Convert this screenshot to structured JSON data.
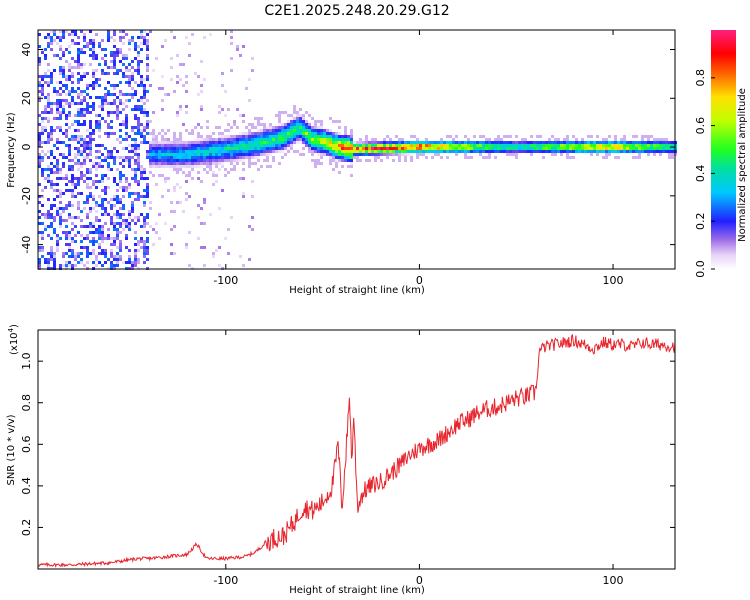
{
  "title": "C2E1.2025.248.20.29.G12",
  "chart_data": [
    {
      "type": "heatmap",
      "xlabel": "Height of straight line (km)",
      "ylabel": "Frequency (Hz)",
      "xlim": [
        -197,
        132
      ],
      "ylim": [
        -50,
        48
      ],
      "x_ticks": [
        -100,
        0,
        100
      ],
      "x_tick_labels": [
        "-100",
        "0",
        "100"
      ],
      "y_ticks": [
        -40,
        -20,
        0,
        20,
        40
      ],
      "y_tick_labels": [
        "-40",
        "-20",
        "0",
        "20",
        "40"
      ],
      "colorbar": {
        "label": "Normalized spectral amplitude",
        "range": [
          0,
          1
        ],
        "ticks": [
          0,
          0.2,
          0.4,
          0.6,
          0.8
        ],
        "tick_labels": [
          "0.0",
          "0.2",
          "0.4",
          "0.6",
          "0.8"
        ],
        "colormap": "rainbow (white-purple-blue-cyan-green-yellow-red-pink)"
      },
      "ridge": {
        "x": [
          -140,
          -120,
          -100,
          -85,
          -70,
          -62,
          -55,
          -48,
          -42,
          -35,
          0,
          50,
          100,
          132
        ],
        "frequency": [
          -3,
          -3,
          -1,
          1,
          4,
          8,
          3,
          2,
          0,
          -1,
          0,
          0,
          0,
          0
        ],
        "peak_amplitude": [
          0.35,
          0.4,
          0.45,
          0.5,
          0.55,
          0.55,
          0.6,
          0.7,
          0.9,
          1.0,
          1.0,
          0.5,
          0.9,
          0.5
        ]
      }
    },
    {
      "type": "line",
      "xlabel": "Height of straight line (km)",
      "ylabel": "SNR (10 * v/v)",
      "y_multiplier_label": "(x10",
      "y_multiplier_exponent": "4",
      "xlim": [
        -197,
        132
      ],
      "ylim": [
        0,
        1.15
      ],
      "x_ticks": [
        -100,
        0,
        100
      ],
      "x_tick_labels": [
        "-100",
        "0",
        "100"
      ],
      "y_ticks": [
        0.2,
        0.4,
        0.6,
        0.8,
        1.0
      ],
      "y_tick_labels": [
        "0.2",
        "0.4",
        "0.6",
        "0.8",
        "1.0"
      ],
      "series": [
        {
          "name": "SNR",
          "color": "#e8252d",
          "x": [
            -197,
            -180,
            -160,
            -145,
            -140,
            -120,
            -115,
            -110,
            -100,
            -90,
            -85,
            -80,
            -75,
            -70,
            -65,
            -60,
            -55,
            -50,
            -45,
            -42,
            -40,
            -38,
            -36,
            -35,
            -34,
            -32,
            -30,
            -28,
            -25,
            -20,
            -15,
            -10,
            -5,
            0,
            5,
            10,
            15,
            20,
            25,
            30,
            35,
            40,
            45,
            50,
            55,
            60,
            61,
            62,
            65,
            70,
            75,
            80,
            85,
            90,
            95,
            100,
            105,
            110,
            115,
            120,
            125,
            132
          ],
          "y": [
            0.02,
            0.02,
            0.03,
            0.05,
            0.05,
            0.07,
            0.12,
            0.05,
            0.05,
            0.06,
            0.08,
            0.12,
            0.15,
            0.16,
            0.22,
            0.3,
            0.28,
            0.32,
            0.4,
            0.6,
            0.3,
            0.55,
            0.85,
            0.5,
            0.75,
            0.3,
            0.35,
            0.38,
            0.4,
            0.42,
            0.46,
            0.5,
            0.55,
            0.58,
            0.6,
            0.62,
            0.66,
            0.7,
            0.72,
            0.75,
            0.77,
            0.78,
            0.8,
            0.82,
            0.83,
            0.85,
            0.95,
            1.05,
            1.07,
            1.08,
            1.09,
            1.1,
            1.08,
            1.06,
            1.09,
            1.08,
            1.08,
            1.07,
            1.09,
            1.08,
            1.08,
            1.07
          ]
        }
      ]
    }
  ]
}
